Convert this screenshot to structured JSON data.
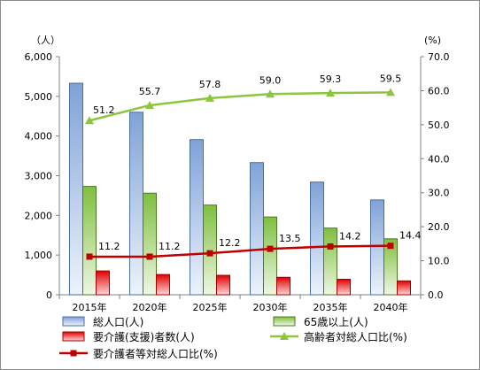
{
  "chart_data": {
    "type": "bar",
    "categories": [
      "2015年",
      "2020年",
      "2025年",
      "2030年",
      "2035年",
      "2040年"
    ],
    "left_axis": {
      "unit_label": "（人）",
      "range": [
        0,
        6000
      ],
      "ticks": [
        "0",
        "1,000",
        "2,000",
        "3,000",
        "4,000",
        "5,000",
        "6,000"
      ]
    },
    "right_axis": {
      "unit_label": "(%)",
      "range": [
        0,
        70
      ],
      "ticks": [
        "0.0",
        "10.0",
        "20.0",
        "30.0",
        "40.0",
        "50.0",
        "60.0",
        "70.0"
      ]
    },
    "series": [
      {
        "name": "総人口(人)",
        "type": "bar",
        "axis": "left",
        "color": "#8fb0e0",
        "values": [
          5330,
          4600,
          3910,
          3330,
          2840,
          2390
        ]
      },
      {
        "name": "65歳以上(人)",
        "type": "bar",
        "axis": "left",
        "color": "#92c84f",
        "values": [
          2730,
          2560,
          2260,
          1960,
          1680,
          1410
        ]
      },
      {
        "name": "要介護(支援)者数(人)",
        "type": "bar",
        "axis": "left",
        "color": "#e41a1a",
        "values": [
          600,
          510,
          490,
          440,
          390,
          350
        ]
      },
      {
        "name": "高齢者対総人口比(%)",
        "type": "line",
        "axis": "right",
        "color": "#8cc63f",
        "marker": "triangle",
        "values": [
          51.2,
          55.7,
          57.8,
          59.0,
          59.3,
          59.5
        ],
        "labels": [
          "51.2",
          "55.7",
          "57.8",
          "59.0",
          "59.3",
          "59.5"
        ]
      },
      {
        "name": "要介護者等対総人口比(%)",
        "type": "line",
        "axis": "right",
        "color": "#c00000",
        "marker": "square",
        "values": [
          11.2,
          11.2,
          12.2,
          13.5,
          14.2,
          14.4
        ],
        "labels": [
          "11.2",
          "11.2",
          "12.2",
          "13.5",
          "14.2",
          "14.4"
        ]
      }
    ],
    "grid": false,
    "legend_position": "bottom"
  }
}
